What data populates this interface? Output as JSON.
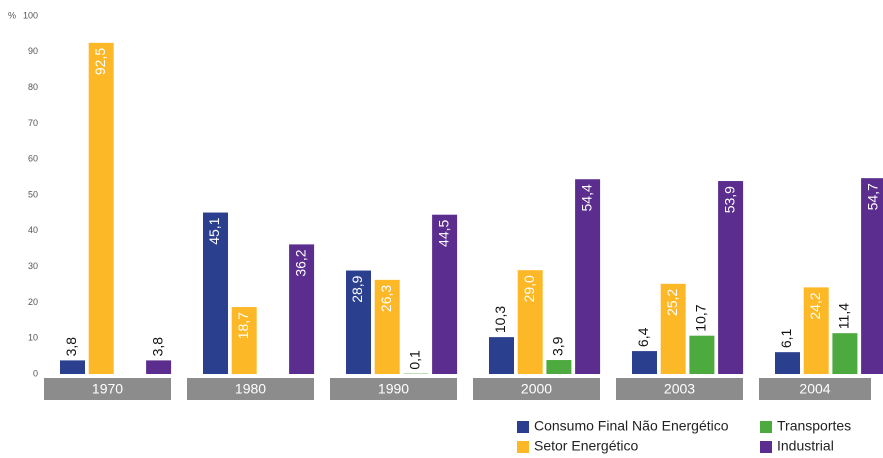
{
  "chart_data": {
    "type": "bar",
    "y_label": "%",
    "categories": [
      "1970",
      "1980",
      "1990",
      "2000",
      "2003",
      "2004"
    ],
    "series": [
      {
        "name": "Consumo Final Não Energético",
        "color": "#2b3f8f",
        "values": [
          3.8,
          45.1,
          28.9,
          10.3,
          6.4,
          6.1
        ],
        "value_labels": [
          "3,8",
          "45,1",
          "28,9",
          "10,3",
          "6,4",
          "6,1"
        ]
      },
      {
        "name": "Setor Energético",
        "color": "#fdb827",
        "values": [
          92.5,
          18.7,
          26.3,
          29.0,
          25.2,
          24.2
        ],
        "value_labels": [
          "92,5",
          "18,7",
          "26,3",
          "29,0",
          "25,2",
          "24,2"
        ]
      },
      {
        "name": "Transportes",
        "color": "#4daa3f",
        "values": [
          null,
          null,
          0.1,
          3.9,
          10.7,
          11.4
        ],
        "value_labels": [
          null,
          null,
          "0,1",
          "3,9",
          "10,7",
          "11,4"
        ]
      },
      {
        "name": "Industrial",
        "color": "#5b2d8e",
        "values": [
          3.8,
          36.2,
          44.5,
          54.4,
          53.9,
          54.7
        ],
        "value_labels": [
          "3,8",
          "36,2",
          "44,5",
          "54,4",
          "53,9",
          "54,7"
        ]
      }
    ],
    "ylim": [
      0,
      100
    ],
    "yticks": [
      0,
      10,
      20,
      30,
      40,
      50,
      60,
      70,
      80,
      90,
      100
    ],
    "grid": false
  }
}
